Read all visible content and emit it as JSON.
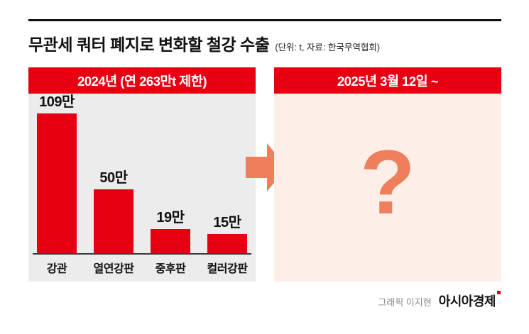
{
  "header": {
    "title": "무관세 쿼터 폐지로 변화할 철강 수출",
    "subtitle": "(단위: t, 자료: 한국무역협회)"
  },
  "panels": {
    "left_header": "2024년 (연 263만t 제한)",
    "right_header": "2025년 3월 12일 ~",
    "question_mark": "?"
  },
  "footer": {
    "credit": "그래픽 이지현",
    "brand": "아시아경제"
  },
  "colors": {
    "accent_red": "#e60012",
    "arrow_orange": "#ee7e5c",
    "left_panel_bg": "#ececec",
    "right_panel_bg": "#fdefe7"
  },
  "chart_data": {
    "type": "bar",
    "title": "2024년 (연 263만t 제한)",
    "subtitle_unit": "단위: t",
    "source": "한국무역협회",
    "categories": [
      "강관",
      "열연강판",
      "중후판",
      "컬러강판"
    ],
    "values": [
      109,
      50,
      19,
      15
    ],
    "value_labels": [
      "109만",
      "50만",
      "19만",
      "15만"
    ],
    "ylim": [
      0,
      109
    ],
    "bar_color": "#e60012",
    "legend": "none",
    "grid": "off"
  }
}
